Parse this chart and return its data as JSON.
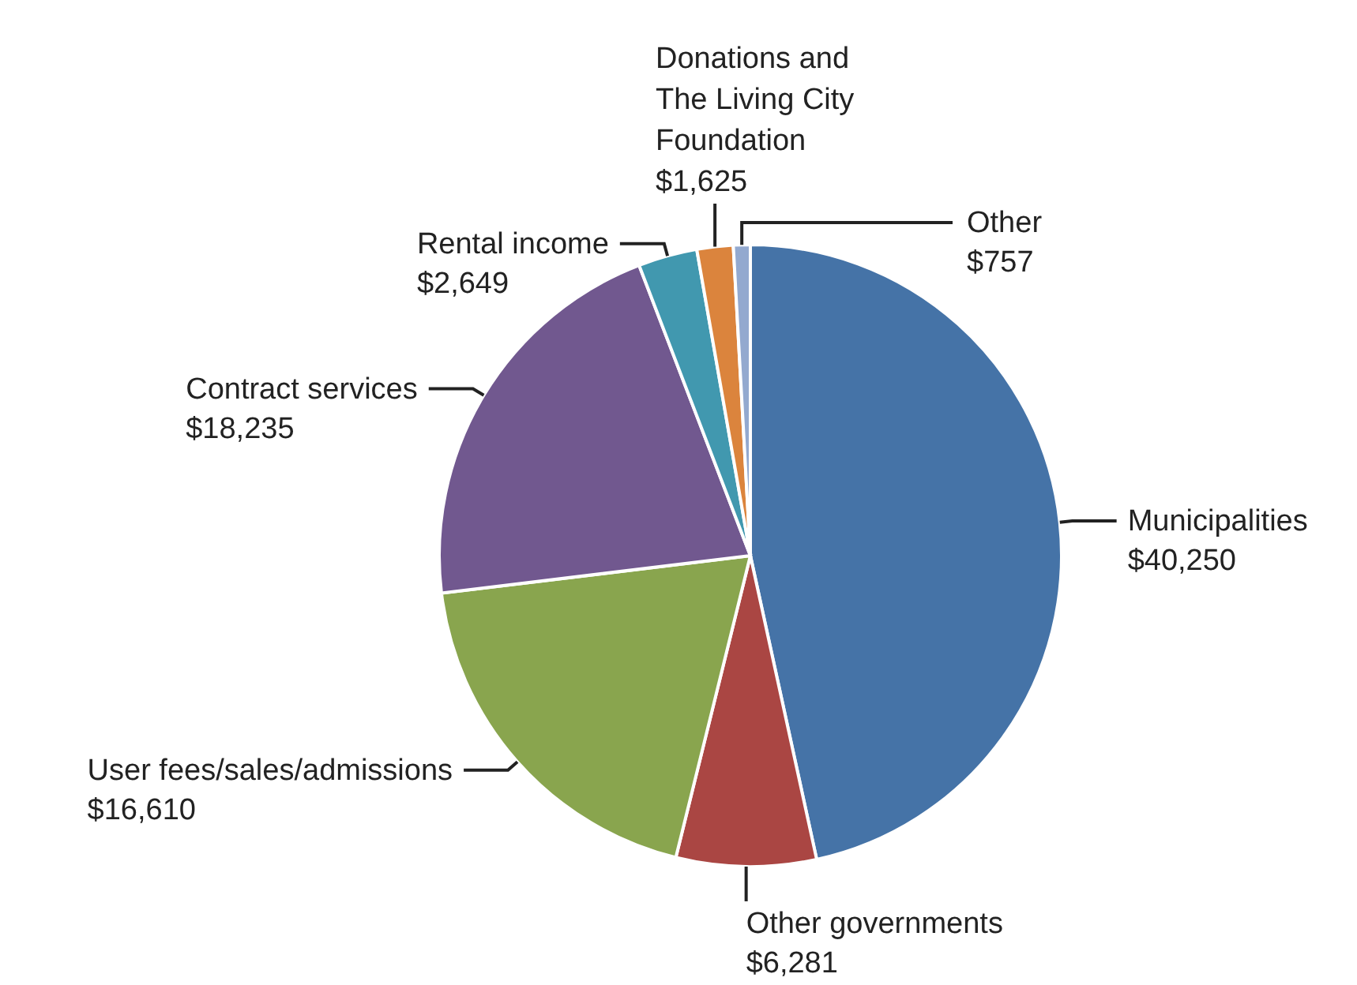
{
  "chart_data": {
    "type": "pie",
    "categories": [
      "Municipalities",
      "Other governments",
      "User fees/sales/admissions",
      "Contract services",
      "Rental income",
      "Donations and The Living City Foundation",
      "Other"
    ],
    "values": [
      40250,
      6281,
      16610,
      18235,
      2649,
      1625,
      757
    ],
    "colors": [
      "#4573a7",
      "#aa4643",
      "#89a54e",
      "#71588f",
      "#4198af",
      "#db843d",
      "#93a9cf"
    ],
    "value_labels": [
      "$40,250",
      "$6,281",
      "$16,610",
      "$18,235",
      "$2,649",
      "$1,625",
      "$757"
    ]
  }
}
